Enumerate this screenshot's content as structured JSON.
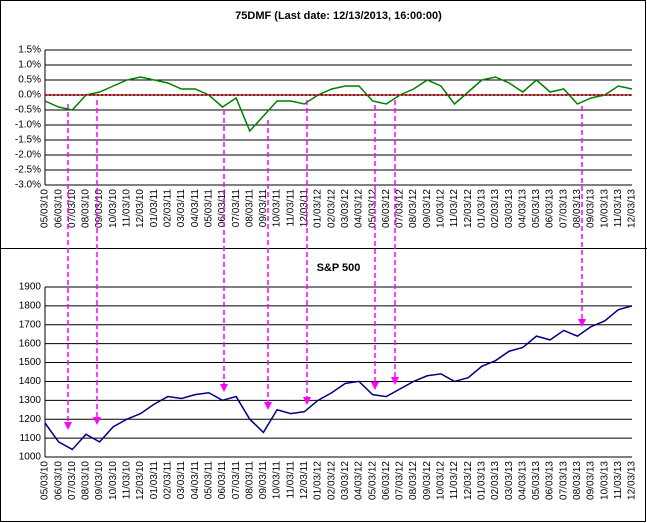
{
  "chart_data": [
    {
      "type": "line",
      "title": "75DMF (Last date: 12/13/2013, 16:00:00)",
      "categories": [
        "05/03/10",
        "06/03/10",
        "07/03/10",
        "08/03/10",
        "09/03/10",
        "10/03/10",
        "11/03/10",
        "12/03/10",
        "01/03/11",
        "02/03/11",
        "03/03/11",
        "04/03/11",
        "05/03/11",
        "06/03/11",
        "07/03/11",
        "08/03/11",
        "09/03/11",
        "10/03/11",
        "11/03/11",
        "12/03/11",
        "01/03/12",
        "02/03/12",
        "03/03/12",
        "04/03/12",
        "05/03/12",
        "06/03/12",
        "07/03/12",
        "08/03/12",
        "09/03/12",
        "10/03/12",
        "11/03/12",
        "12/03/12",
        "01/03/13",
        "02/03/13",
        "03/03/13",
        "04/03/13",
        "05/03/13",
        "06/03/13",
        "07/03/13",
        "08/03/13",
        "09/03/13",
        "10/03/13",
        "11/03/13",
        "12/03/13"
      ],
      "series": [
        {
          "name": "75DMF",
          "color": "#008000",
          "values": [
            -0.2,
            -0.4,
            -0.5,
            0.0,
            0.1,
            0.3,
            0.5,
            0.6,
            0.5,
            0.4,
            0.2,
            0.2,
            0.0,
            -0.4,
            -0.1,
            -1.2,
            -0.7,
            -0.2,
            -0.2,
            -0.3,
            0.0,
            0.2,
            0.3,
            0.3,
            -0.2,
            -0.3,
            0.0,
            0.2,
            0.5,
            0.3,
            -0.3,
            0.1,
            0.5,
            0.6,
            0.4,
            0.1,
            0.5,
            0.1,
            0.2,
            -0.3,
            -0.1,
            0.0,
            0.3,
            0.2
          ]
        }
      ],
      "ylim": [
        -3,
        1.5
      ],
      "yticks": [
        {
          "value": -3,
          "label": "-3.0%"
        },
        {
          "value": -2.5,
          "label": "-2.5%"
        },
        {
          "value": -2,
          "label": "-2.0%"
        },
        {
          "value": -1.5,
          "label": "-1.5%"
        },
        {
          "value": -1,
          "label": "-1.0%"
        },
        {
          "value": -0.5,
          "label": "-0.5%"
        },
        {
          "value": 0,
          "label": "0.0%"
        },
        {
          "value": 0.5,
          "label": "0.5%"
        },
        {
          "value": 1,
          "label": "1.0%"
        },
        {
          "value": 1.5,
          "label": "1.5%"
        }
      ],
      "grid": true,
      "reference_line_color": "#cc0000"
    },
    {
      "type": "line",
      "title": "S&P 500",
      "categories": [
        "05/03/10",
        "06/03/10",
        "07/03/10",
        "08/03/10",
        "09/03/10",
        "10/03/10",
        "11/03/10",
        "12/03/10",
        "01/03/11",
        "02/03/11",
        "03/03/11",
        "04/03/11",
        "05/03/11",
        "06/03/11",
        "07/03/11",
        "08/03/11",
        "09/03/11",
        "10/03/11",
        "11/03/11",
        "12/03/11",
        "01/03/12",
        "02/03/12",
        "03/03/12",
        "04/03/12",
        "05/03/12",
        "06/03/12",
        "07/03/12",
        "08/03/12",
        "09/03/12",
        "10/03/12",
        "11/03/12",
        "12/03/12",
        "01/03/13",
        "02/03/13",
        "03/03/13",
        "04/03/13",
        "05/03/13",
        "06/03/13",
        "07/03/13",
        "08/03/13",
        "09/03/13",
        "10/03/13",
        "11/03/13",
        "12/03/13"
      ],
      "series": [
        {
          "name": "S&P 500",
          "color": "#000080",
          "values": [
            1180,
            1080,
            1040,
            1120,
            1080,
            1160,
            1200,
            1230,
            1280,
            1320,
            1310,
            1330,
            1340,
            1300,
            1320,
            1200,
            1130,
            1250,
            1230,
            1240,
            1300,
            1340,
            1390,
            1400,
            1330,
            1320,
            1360,
            1400,
            1430,
            1440,
            1400,
            1420,
            1480,
            1510,
            1560,
            1580,
            1640,
            1620,
            1670,
            1640,
            1690,
            1720,
            1780,
            1800
          ]
        }
      ],
      "ylim": [
        1000,
        1900
      ],
      "yticks": [
        1000,
        1100,
        1200,
        1300,
        1400,
        1500,
        1600,
        1700,
        1800,
        1900
      ],
      "grid": true
    }
  ]
}
